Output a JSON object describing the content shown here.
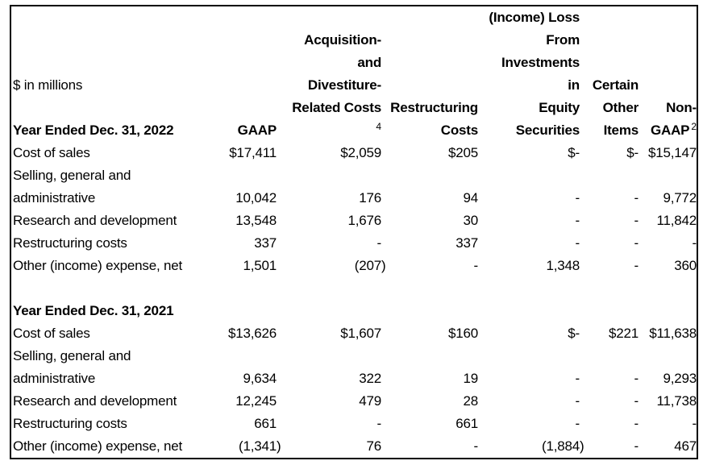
{
  "colors": {
    "background": "#ffffff",
    "text": "#000000",
    "border": "#000000"
  },
  "table": {
    "columns": [
      {
        "name": "row-label",
        "align": "left"
      },
      {
        "name": "gaap",
        "align": "right"
      },
      {
        "name": "acquisition-and-divestiture-related-costs",
        "align": "right"
      },
      {
        "name": "restructuring-costs",
        "align": "right"
      },
      {
        "name": "income-loss-from-investments-in-equity-securities",
        "align": "right"
      },
      {
        "name": "certain-other-items",
        "align": "right"
      },
      {
        "name": "non-gaap",
        "align": "right"
      }
    ],
    "header_lines": [
      [
        "",
        "",
        "",
        "",
        "(Income) Loss",
        "",
        ""
      ],
      [
        "",
        "",
        "Acquisition-",
        "",
        "From",
        "",
        ""
      ],
      [
        "",
        "",
        "and",
        "",
        "Investments",
        "",
        ""
      ],
      [
        {
          "text": "$ in millions",
          "bold": false
        },
        "",
        "Divestiture-",
        "",
        "in",
        "Certain",
        ""
      ],
      [
        "",
        "",
        "Related Costs",
        "Restructuring",
        "Equity",
        "Other",
        "Non-"
      ],
      [
        "",
        "GAAP",
        {
          "sup": "4"
        },
        "Costs",
        "Securities",
        "Items",
        {
          "text": "GAAP",
          "sup": "2"
        }
      ]
    ],
    "footnote_markers": {
      "acquisition_divestiture_column": "4",
      "non_gaap_column": "2"
    },
    "sections": [
      {
        "title": "Year Ended Dec. 31, 2022",
        "title_in_header": true,
        "rows": [
          {
            "label_lines": [
              "Cost of sales"
            ],
            "values": [
              "$17,411",
              "$2,059",
              "$205",
              "$-",
              "$-",
              "$15,147"
            ]
          },
          {
            "label_lines": [
              "Selling, general and",
              "administrative"
            ],
            "values": [
              "10,042",
              "176",
              "94",
              "-",
              "-",
              "9,772"
            ]
          },
          {
            "label_lines": [
              "Research and development"
            ],
            "values": [
              "13,548",
              "1,676",
              "30",
              "-",
              "-",
              "11,842"
            ]
          },
          {
            "label_lines": [
              "Restructuring costs"
            ],
            "values": [
              "337",
              "-",
              "337",
              "-",
              "-",
              "-"
            ]
          },
          {
            "label_lines": [
              "Other (income) expense, net"
            ],
            "values": [
              "1,501",
              "(207)",
              "-",
              "1,348",
              "-",
              "360"
            ]
          }
        ]
      },
      {
        "title": "Year Ended Dec. 31, 2021",
        "title_in_header": false,
        "rows": [
          {
            "label_lines": [
              "Cost of sales"
            ],
            "values": [
              "$13,626",
              "$1,607",
              "$160",
              "$-",
              "$221",
              "$11,638"
            ]
          },
          {
            "label_lines": [
              "Selling, general and",
              "administrative"
            ],
            "values": [
              "9,634",
              "322",
              "19",
              "-",
              "-",
              "9,293"
            ]
          },
          {
            "label_lines": [
              "Research and development"
            ],
            "values": [
              "12,245",
              "479",
              "28",
              "-",
              "-",
              "11,738"
            ]
          },
          {
            "label_lines": [
              "Restructuring costs"
            ],
            "values": [
              "661",
              "-",
              "661",
              "-",
              "-",
              "-"
            ]
          },
          {
            "label_lines": [
              "Other (income) expense, net"
            ],
            "values": [
              "(1,341)",
              "76",
              "-",
              "(1,884)",
              "-",
              "467"
            ]
          }
        ]
      }
    ]
  }
}
